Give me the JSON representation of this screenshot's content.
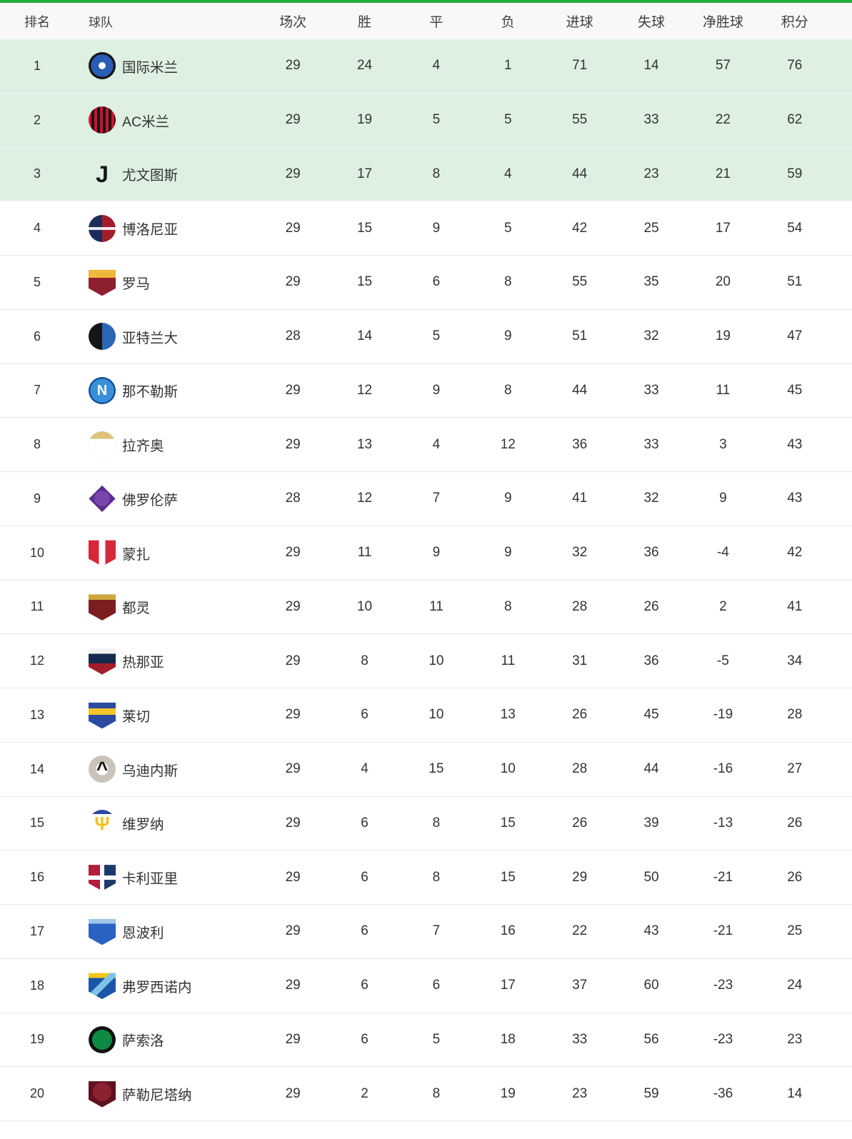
{
  "theme": {
    "topbar_color": "#21ad3d",
    "highlight_row_bg": "#ddf0e2",
    "row_divider_color": "#e9e9e9",
    "text_color": "#333333"
  },
  "table": {
    "headers": [
      "排名",
      "球队",
      "场次",
      "胜",
      "平",
      "负",
      "进球",
      "失球",
      "净胜球",
      "积分"
    ]
  },
  "teams": [
    {
      "rank": 1,
      "name": "国际米兰",
      "highlight": true,
      "stats": [
        29,
        24,
        4,
        1,
        71,
        14,
        57,
        76
      ],
      "badge": {
        "shape": "circle",
        "bg": "radial-gradient(circle, #ffffff 0 18%, #2a5db5 18% 58%, #16161a 58% 100%)"
      }
    },
    {
      "rank": 2,
      "name": "AC米兰",
      "highlight": true,
      "stats": [
        29,
        19,
        5,
        5,
        55,
        33,
        22,
        62
      ],
      "badge": {
        "shape": "circle",
        "bg": "repeating-linear-gradient(90deg, #d0112b 0 4px, #16161a 4px 8px)"
      }
    },
    {
      "rank": 3,
      "name": "尤文图斯",
      "highlight": true,
      "stats": [
        29,
        17,
        8,
        4,
        44,
        23,
        21,
        59
      ],
      "badge": {
        "shape": "circle",
        "bg": "transparent",
        "glyph": "J",
        "glyph_color": "#141414",
        "glyph_size": 32
      }
    },
    {
      "rank": 4,
      "name": "博洛尼亚",
      "highlight": false,
      "stats": [
        29,
        15,
        9,
        5,
        42,
        25,
        17,
        54
      ],
      "badge": {
        "shape": "circle",
        "bg": "linear-gradient(0deg, transparent 0 45%, rgba(255,255,255,0.9) 45% 55%, transparent 55% 100%), linear-gradient(90deg, #1d2c5b 0 50%, #a31e2c 50% 100%)"
      }
    },
    {
      "rank": 5,
      "name": "罗马",
      "highlight": false,
      "stats": [
        29,
        15,
        6,
        8,
        55,
        35,
        20,
        51
      ],
      "badge": {
        "shape": "shield",
        "bg": "linear-gradient(180deg, #f0b73d 0 34%, #8e1f2f 34% 100%)"
      }
    },
    {
      "rank": 6,
      "name": "亚特兰大",
      "highlight": false,
      "stats": [
        28,
        14,
        5,
        9,
        51,
        32,
        19,
        47
      ],
      "badge": {
        "shape": "circle",
        "bg": "linear-gradient(90deg, #16161a 0 50%, #2b66b8 50% 100%)"
      }
    },
    {
      "rank": 7,
      "name": "那不勒斯",
      "highlight": false,
      "stats": [
        29,
        12,
        9,
        8,
        44,
        33,
        11,
        45
      ],
      "badge": {
        "shape": "circle",
        "bg": "radial-gradient(circle, #3b8fd8 0 62%, #0f4e94 62% 100%)",
        "glyph": "N",
        "glyph_color": "#ffffff",
        "glyph_size": 20
      }
    },
    {
      "rank": 8,
      "name": "拉齐奥",
      "highlight": false,
      "stats": [
        29,
        13,
        4,
        12,
        36,
        33,
        3,
        43
      ],
      "badge": {
        "shape": "circle",
        "bg": "radial-gradient(circle, transparent 0 70%, #bcd9ef 70% 100%), linear-gradient(180deg, #dfc27a 0 28%, #ffffff 28% 100%)"
      }
    },
    {
      "rank": 9,
      "name": "佛罗伦萨",
      "highlight": false,
      "stats": [
        28,
        12,
        7,
        9,
        41,
        32,
        9,
        43
      ],
      "badge": {
        "shape": "diamond",
        "bg": "radial-gradient(circle, #7a44ad 0 40%, #5b2d8e 40% 100%)"
      }
    },
    {
      "rank": 10,
      "name": "蒙扎",
      "highlight": false,
      "stats": [
        29,
        11,
        9,
        9,
        32,
        36,
        -4,
        42
      ],
      "badge": {
        "shape": "shield",
        "bg": "linear-gradient(90deg, #d6273b 0 38%, #ffffff 38% 62%, #d6273b 62% 100%)"
      }
    },
    {
      "rank": 11,
      "name": "都灵",
      "highlight": false,
      "stats": [
        29,
        10,
        11,
        8,
        28,
        26,
        2,
        41
      ],
      "badge": {
        "shape": "shield",
        "bg": "linear-gradient(180deg, #caa83c 0 24%, #7a1e22 24% 100%)"
      }
    },
    {
      "rank": 12,
      "name": "热那亚",
      "highlight": false,
      "stats": [
        29,
        8,
        10,
        11,
        31,
        36,
        -5,
        34
      ],
      "badge": {
        "shape": "shield",
        "bg": "linear-gradient(180deg, #f2f2f2 0 22%, #16294e 22% 58%, #a31e2c 58% 100%)"
      }
    },
    {
      "rank": 13,
      "name": "莱切",
      "highlight": false,
      "stats": [
        29,
        6,
        10,
        13,
        26,
        45,
        -19,
        28
      ],
      "badge": {
        "shape": "shield",
        "bg": "linear-gradient(180deg, #2b4aa0 0 26%, #f3c52a 26% 50%, #2b4aa0 50% 100%)"
      }
    },
    {
      "rank": 14,
      "name": "乌迪内斯",
      "highlight": false,
      "stats": [
        29,
        4,
        15,
        10,
        28,
        44,
        -16,
        27
      ],
      "badge": {
        "shape": "circle",
        "bg": "radial-gradient(circle, #ffffff 0 32%, #c9c3ba 32% 100%)",
        "glyph": "^",
        "glyph_color": "#141414",
        "glyph_size": 28
      }
    },
    {
      "rank": 15,
      "name": "维罗纳",
      "highlight": false,
      "stats": [
        29,
        6,
        8,
        15,
        26,
        39,
        -13,
        26
      ],
      "badge": {
        "shape": "circle",
        "bg": "linear-gradient(180deg, #2b4aa0 0 16%, #ffffff 16% 100%)",
        "glyph": "Ψ",
        "glyph_color": "#f2c11d",
        "glyph_size": 26
      }
    },
    {
      "rank": 16,
      "name": "卡利亚里",
      "highlight": false,
      "stats": [
        29,
        6,
        8,
        15,
        29,
        50,
        -21,
        26
      ],
      "badge": {
        "shape": "shield",
        "bg": "linear-gradient(0deg, transparent 0 42%, #ffffff 42% 58%, transparent 58% 100%), linear-gradient(90deg, transparent 0 42%, #ffffff 42% 58%, transparent 58% 100%), linear-gradient(90deg, #b01e3c 0 50%, #1b3a6b 50% 100%)"
      }
    },
    {
      "rank": 17,
      "name": "恩波利",
      "highlight": false,
      "stats": [
        29,
        6,
        7,
        16,
        22,
        43,
        -21,
        25
      ],
      "badge": {
        "shape": "shield",
        "bg": "linear-gradient(180deg, #9ec7e8 0 22%, #2a62c4 22% 100%)"
      }
    },
    {
      "rank": 18,
      "name": "弗罗西诺内",
      "highlight": false,
      "stats": [
        29,
        6,
        6,
        17,
        37,
        60,
        -23,
        24
      ],
      "badge": {
        "shape": "shield",
        "bg": "linear-gradient(135deg, transparent 0 42%, #7ec3e8 42% 58%, transparent 58% 100%), linear-gradient(180deg, #f0c81e 0 22%, #1b55a8 22% 100%)"
      }
    },
    {
      "rank": 19,
      "name": "萨索洛",
      "highlight": false,
      "stats": [
        29,
        6,
        5,
        18,
        33,
        56,
        -23,
        23
      ],
      "badge": {
        "shape": "circle",
        "bg": "radial-gradient(circle, #0f8a43 0 52%, #101010 52% 70%, #0f8a43 70% 100%)"
      }
    },
    {
      "rank": 20,
      "name": "萨勒尼塔纳",
      "highlight": false,
      "stats": [
        29,
        2,
        8,
        19,
        23,
        59,
        -36,
        14
      ],
      "badge": {
        "shape": "shield",
        "bg": "radial-gradient(circle at 50% 42%, #8a2230 0 45%, #5f1120 45% 100%)"
      }
    }
  ]
}
